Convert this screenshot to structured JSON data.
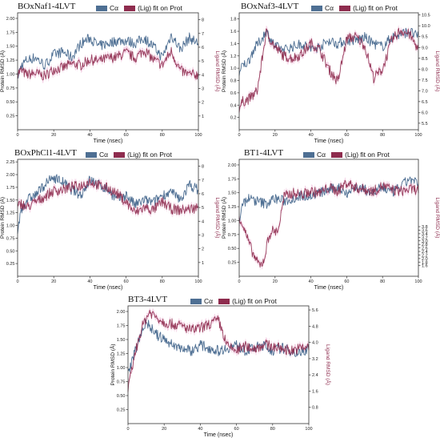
{
  "colors": {
    "protein": "#4e6f93",
    "ligand": "#8e2c4e",
    "ligand_shade": "#f2c7df",
    "axis": "#333333"
  },
  "legend": {
    "protein_label": "Cα",
    "ligand_label": "(Lig) fit on Prot"
  },
  "axes_text": {
    "xlabel": "Time (nsec)",
    "ylabel_left": "Protein RMSD (Å)",
    "ylabel_right": "Ligand RMSD (Å)"
  },
  "chart_data": [
    {
      "type": "line",
      "title": "BOxNaf1-4LVT",
      "xlabel": "Time (nsec)",
      "ylabel": "Protein RMSD (Å)",
      "ylabel_right": "Ligand RMSD (Å)",
      "xlim": [
        0,
        100
      ],
      "ylim": [
        0,
        2.1
      ],
      "ylim_right": [
        0,
        8.5
      ],
      "x_ticks": [
        0,
        20,
        40,
        60,
        80,
        100
      ],
      "y_ticks": [
        0.25,
        0.5,
        0.75,
        1.0,
        1.25,
        1.5,
        1.75,
        2.0
      ],
      "y_ticks_right": [
        1,
        2,
        3,
        4,
        5,
        6,
        7,
        8
      ],
      "legend_position": "top",
      "series": [
        {
          "name": "Cα",
          "axis": "left",
          "x": [
            0,
            2,
            5,
            10,
            15,
            20,
            25,
            30,
            35,
            40,
            45,
            50,
            55,
            60,
            65,
            70,
            75,
            80,
            85,
            90,
            95,
            100
          ],
          "y": [
            0.95,
            1.15,
            1.25,
            1.3,
            1.15,
            1.35,
            1.4,
            1.3,
            1.55,
            1.65,
            1.5,
            1.55,
            1.6,
            1.6,
            1.55,
            1.65,
            1.5,
            1.3,
            1.7,
            1.45,
            1.65,
            1.55
          ]
        },
        {
          "name": "(Lig) fit on Prot",
          "axis": "right",
          "x": [
            0,
            2,
            5,
            10,
            15,
            20,
            25,
            30,
            35,
            40,
            45,
            50,
            55,
            60,
            65,
            70,
            75,
            80,
            85,
            90,
            95,
            100
          ],
          "y": [
            4.1,
            4.3,
            4.0,
            4.1,
            3.9,
            4.4,
            4.5,
            4.8,
            4.7,
            5.1,
            5.0,
            5.2,
            5.3,
            5.6,
            5.2,
            5.8,
            5.1,
            4.7,
            5.7,
            4.3,
            4.0,
            4.0
          ]
        }
      ]
    },
    {
      "type": "line",
      "title": "BOxNaf3-4LVT",
      "xlabel": "Time (nsec)",
      "ylabel": "Protein RMSD (Å)",
      "ylabel_right": "Ligand RMSD (Å)",
      "xlim": [
        0,
        100
      ],
      "ylim": [
        0,
        1.9
      ],
      "ylim_right": [
        5.2,
        10.6
      ],
      "x_ticks": [
        0,
        20,
        40,
        60,
        80,
        100
      ],
      "y_ticks": [
        0.2,
        0.4,
        0.6,
        0.8,
        1.0,
        1.2,
        1.4,
        1.6,
        1.8
      ],
      "y_ticks_right": [
        5.5,
        6.0,
        6.5,
        7.0,
        7.5,
        8.0,
        8.5,
        9.0,
        9.5,
        10.0,
        10.5
      ],
      "legend_position": "top",
      "series": [
        {
          "name": "Cα",
          "axis": "left",
          "x": [
            0,
            2,
            5,
            8,
            12,
            15,
            20,
            25,
            30,
            35,
            40,
            45,
            50,
            55,
            60,
            65,
            70,
            75,
            80,
            85,
            90,
            95,
            100
          ],
          "y": [
            0.9,
            1.05,
            1.1,
            1.3,
            1.45,
            1.6,
            1.35,
            1.3,
            1.35,
            1.4,
            1.3,
            1.35,
            1.45,
            1.4,
            1.45,
            1.45,
            1.5,
            1.4,
            1.35,
            1.5,
            1.55,
            1.6,
            1.5
          ]
        },
        {
          "name": "(Lig) fit on Prot",
          "axis": "right",
          "x": [
            0,
            2,
            5,
            8,
            10,
            12,
            15,
            20,
            25,
            30,
            35,
            40,
            45,
            50,
            55,
            60,
            65,
            70,
            75,
            80,
            85,
            90,
            95,
            100
          ],
          "y": [
            6.2,
            6.5,
            6.6,
            6.8,
            7.0,
            8.0,
            9.7,
            9.0,
            8.6,
            8.5,
            8.7,
            9.2,
            8.9,
            8.0,
            7.4,
            9.4,
            9.5,
            9.1,
            7.6,
            8.0,
            9.3,
            9.8,
            9.6,
            8.9
          ]
        }
      ]
    },
    {
      "type": "line",
      "title": "BOxPhCl1-4LVT",
      "xlabel": "Time (nsec)",
      "ylabel": "Protein RMSD (Å)",
      "ylabel_right": "Ligand RMSD (Å)",
      "xlim": [
        0,
        100
      ],
      "ylim": [
        0,
        2.3
      ],
      "ylim_right": [
        0,
        8.5
      ],
      "x_ticks": [
        0,
        20,
        40,
        60,
        80,
        100
      ],
      "y_ticks": [
        0.25,
        0.5,
        0.75,
        1.0,
        1.25,
        1.5,
        1.75,
        2.0,
        2.25
      ],
      "y_ticks_right": [
        1,
        2,
        3,
        4,
        5,
        6,
        7,
        8
      ],
      "legend_position": "top",
      "series": [
        {
          "name": "Cα",
          "axis": "left",
          "x": [
            0,
            2,
            5,
            10,
            15,
            20,
            25,
            30,
            35,
            40,
            45,
            50,
            55,
            60,
            65,
            70,
            75,
            80,
            85,
            90,
            95,
            100
          ],
          "y": [
            0.9,
            1.3,
            1.5,
            1.6,
            1.8,
            1.95,
            1.85,
            1.7,
            1.6,
            1.9,
            1.8,
            1.7,
            1.5,
            1.6,
            1.4,
            1.5,
            1.45,
            1.6,
            1.65,
            1.5,
            1.8,
            1.7
          ]
        },
        {
          "name": "(Lig) fit on Prot",
          "axis": "right",
          "x": [
            0,
            2,
            5,
            10,
            15,
            20,
            25,
            30,
            35,
            40,
            45,
            50,
            55,
            60,
            65,
            70,
            75,
            80,
            85,
            90,
            95,
            100
          ],
          "y": [
            5.0,
            5.3,
            5.0,
            5.4,
            5.8,
            6.2,
            6.3,
            6.5,
            6.6,
            6.9,
            6.6,
            6.4,
            6.0,
            5.4,
            4.6,
            5.0,
            4.8,
            5.4,
            4.9,
            4.8,
            4.9,
            5.0
          ]
        }
      ]
    },
    {
      "type": "line",
      "title": "BT1-4LVT",
      "xlabel": "Time (nsec)",
      "ylabel": "Protein RMSD (Å)",
      "ylabel_right": "Ligand RMSD (Å)",
      "xlim": [
        0,
        100
      ],
      "ylim": [
        0,
        2.1
      ],
      "ylim_right": [
        1.0,
        7.6
      ],
      "x_ticks": [
        0,
        20,
        40,
        60,
        80,
        100
      ],
      "y_ticks": [
        0.25,
        0.5,
        0.75,
        1.0,
        1.25,
        1.5,
        1.75,
        2.0
      ],
      "y_ticks_right": [
        1.6,
        1.8,
        2.0,
        2.2,
        2.4,
        2.6,
        2.8,
        3.0,
        3.2,
        3.4,
        3.6,
        3.8
      ],
      "legend_position": "top",
      "series": [
        {
          "name": "Cα",
          "axis": "left",
          "x": [
            0,
            2,
            5,
            10,
            15,
            20,
            25,
            30,
            35,
            40,
            45,
            50,
            55,
            60,
            65,
            70,
            75,
            80,
            85,
            90,
            95,
            100
          ],
          "y": [
            1.0,
            1.3,
            1.4,
            1.35,
            1.3,
            1.4,
            1.35,
            1.4,
            1.45,
            1.45,
            1.5,
            1.55,
            1.6,
            1.5,
            1.6,
            1.55,
            1.5,
            1.6,
            1.5,
            1.6,
            1.75,
            1.65
          ]
        },
        {
          "name": "(Lig) fit on Prot",
          "axis": "right",
          "x": [
            0,
            2,
            5,
            8,
            10,
            12,
            14,
            16,
            18,
            20,
            22,
            25,
            30,
            35,
            40,
            45,
            50,
            55,
            60,
            65,
            70,
            75,
            80,
            85,
            90,
            95,
            100
          ],
          "y": [
            4.4,
            3.9,
            3.0,
            2.2,
            1.8,
            1.6,
            2.0,
            3.0,
            3.6,
            3.5,
            3.7,
            5.5,
            5.7,
            5.6,
            5.8,
            5.7,
            6.0,
            5.8,
            6.3,
            6.0,
            5.9,
            5.8,
            6.1,
            5.9,
            5.8,
            5.9,
            5.9
          ]
        }
      ]
    },
    {
      "type": "line",
      "title": "BT3-4LVT",
      "xlabel": "Time (nsec)",
      "ylabel": "Protein RMSD (Å)",
      "ylabel_right": "Ligand RMSD (Å)",
      "xlim": [
        0,
        100
      ],
      "ylim": [
        0,
        2.1
      ],
      "ylim_right": [
        0,
        5.8
      ],
      "x_ticks": [
        0,
        20,
        40,
        60,
        80,
        100
      ],
      "y_ticks": [
        0.25,
        0.5,
        0.75,
        1.0,
        1.25,
        1.5,
        1.75,
        2.0
      ],
      "y_ticks_right": [
        0.8,
        1.6,
        2.4,
        3.2,
        4.0,
        4.8,
        5.6
      ],
      "legend_position": "top",
      "series": [
        {
          "name": "Cα",
          "axis": "left",
          "x": [
            0,
            2,
            4,
            6,
            8,
            10,
            12,
            15,
            20,
            25,
            30,
            35,
            40,
            45,
            50,
            55,
            60,
            65,
            70,
            75,
            80,
            85,
            90,
            95,
            100
          ],
          "y": [
            0.9,
            1.1,
            1.3,
            1.5,
            1.7,
            1.8,
            1.75,
            1.6,
            1.5,
            1.4,
            1.35,
            1.3,
            1.4,
            1.35,
            1.3,
            1.35,
            1.4,
            1.3,
            1.35,
            1.4,
            1.3,
            1.35,
            1.3,
            1.25,
            1.35
          ]
        },
        {
          "name": "(Lig) fit on Prot",
          "axis": "right",
          "x": [
            0,
            2,
            4,
            6,
            8,
            10,
            12,
            15,
            20,
            25,
            30,
            35,
            40,
            45,
            50,
            55,
            60,
            65,
            70,
            75,
            80,
            85,
            90,
            95,
            100
          ],
          "y": [
            1.6,
            2.6,
            3.5,
            4.2,
            4.8,
            5.2,
            5.5,
            5.3,
            5.0,
            4.9,
            4.8,
            4.6,
            4.7,
            4.9,
            5.1,
            3.8,
            3.6,
            3.8,
            3.7,
            3.9,
            3.8,
            3.7,
            3.6,
            3.7,
            3.8
          ]
        }
      ]
    }
  ]
}
